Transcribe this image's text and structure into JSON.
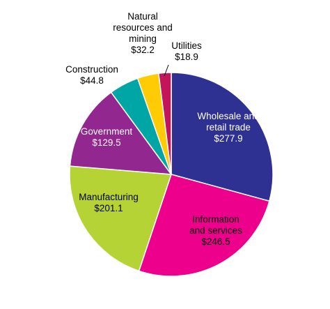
{
  "chart_data": {
    "type": "pie",
    "title": "",
    "slices": [
      {
        "label_lines": [
          "Wholesale and",
          "retail trade"
        ],
        "value_label": "$277.9",
        "value": 277.9,
        "color": "#2E3192",
        "label_color": "#ffffff"
      },
      {
        "label_lines": [
          "Information",
          "and services"
        ],
        "value_label": "$246.5",
        "value": 246.5,
        "color": "#EC008C",
        "label_color": "#000000"
      },
      {
        "label_lines": [
          "Manufacturing"
        ],
        "value_label": "$201.1",
        "value": 201.1,
        "color": "#B5D334",
        "label_color": "#000000"
      },
      {
        "label_lines": [
          "Government"
        ],
        "value_label": "$129.5",
        "value": 129.5,
        "color": "#92278F",
        "label_color": "#ffffff"
      },
      {
        "label_lines": [
          "Construction"
        ],
        "value_label": "$44.8",
        "value": 44.8,
        "color": "#00A6A6",
        "label_color": "#000000"
      },
      {
        "label_lines": [
          "Natural",
          "resources and",
          "mining"
        ],
        "value_label": "$32.2",
        "value": 32.2,
        "color": "#FFCB05",
        "label_color": "#000000"
      },
      {
        "label_lines": [
          "Utilities"
        ],
        "value_label": "$18.9",
        "value": 18.9,
        "color": "#C4145A",
        "label_color": "#000000"
      }
    ]
  }
}
